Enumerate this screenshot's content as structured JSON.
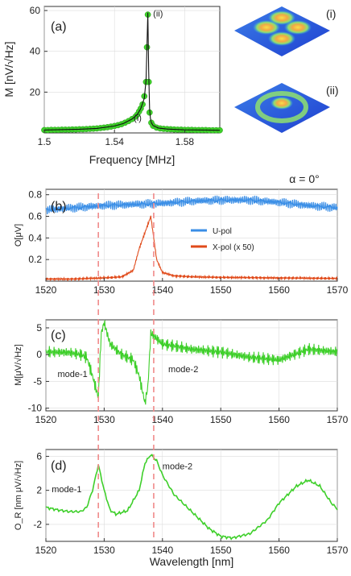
{
  "chart_data": [
    {
      "id": "a",
      "type": "scatter",
      "panel_label": "(a)",
      "xlabel": "Frequency [MHz]",
      "ylabel": "M [nV/√Hz]",
      "xlim": [
        1.5,
        1.6
      ],
      "ylim": [
        0,
        62
      ],
      "xticks": [
        1.5,
        1.54,
        1.58
      ],
      "xtick_labels": [
        "1.5",
        "1.54",
        "1.58"
      ],
      "yticks": [
        20,
        40,
        60
      ],
      "ytick_labels": [
        "20",
        "40",
        "60"
      ],
      "annotations": [
        {
          "text": "(i)",
          "x": 1.551,
          "y": 6
        },
        {
          "text": "(ii)",
          "x": 1.562,
          "y": 57
        }
      ],
      "series": [
        {
          "kind": "points",
          "color": "#3ecf2a",
          "x": [
            1.5,
            1.502,
            1.504,
            1.506,
            1.508,
            1.51,
            1.512,
            1.514,
            1.516,
            1.518,
            1.52,
            1.522,
            1.524,
            1.526,
            1.528,
            1.53,
            1.532,
            1.534,
            1.536,
            1.538,
            1.54,
            1.542,
            1.544,
            1.546,
            1.548,
            1.55,
            1.552,
            1.553,
            1.554,
            1.555,
            1.556,
            1.557,
            1.558,
            1.5585,
            1.559,
            1.5595,
            1.56,
            1.561,
            1.562,
            1.564,
            1.566,
            1.568,
            1.57,
            1.572,
            1.574,
            1.576,
            1.578,
            1.58,
            1.582,
            1.584,
            1.586,
            1.588,
            1.59,
            1.592,
            1.594,
            1.596,
            1.598,
            1.6
          ],
          "y": [
            1.4,
            1.4,
            1.5,
            1.5,
            1.5,
            1.6,
            1.6,
            1.6,
            1.7,
            1.7,
            1.8,
            1.8,
            1.9,
            2,
            2.1,
            2.2,
            2.4,
            2.6,
            2.8,
            3.1,
            3.4,
            3.8,
            4.3,
            5,
            5.8,
            6.8,
            8,
            9,
            10.5,
            12,
            14,
            18,
            25,
            42,
            58,
            25,
            10,
            5,
            3.5,
            2.6,
            2.2,
            2,
            1.9,
            1.8,
            1.7,
            1.6,
            1.6,
            1.5,
            1.5,
            1.5,
            1.4,
            1.4,
            1.4,
            1.4,
            1.3,
            1.3,
            1.3,
            1.3
          ]
        },
        {
          "kind": "fit-line",
          "color": "#111111",
          "x": [
            1.5,
            1.51,
            1.52,
            1.53,
            1.54,
            1.545,
            1.55,
            1.553,
            1.555,
            1.557,
            1.558,
            1.5585,
            1.559,
            1.5595,
            1.56,
            1.5605,
            1.561,
            1.562,
            1.565,
            1.57,
            1.58,
            1.59,
            1.6
          ],
          "y": [
            1.4,
            1.6,
            1.8,
            2.2,
            3.4,
            4.6,
            6.8,
            9,
            12,
            17,
            26,
            42,
            59,
            30,
            12,
            7,
            5,
            3.6,
            2.4,
            1.9,
            1.5,
            1.4,
            1.3
          ]
        }
      ]
    },
    {
      "id": "b",
      "type": "line",
      "panel_label": "(b)",
      "title": "α = 0°",
      "xlabel": "",
      "ylabel": "O[μV]",
      "xlim": [
        1520,
        1570
      ],
      "ylim": [
        0,
        0.85
      ],
      "xticks": [
        1520,
        1530,
        1540,
        1550,
        1560,
        1570
      ],
      "xtick_labels": [
        "1520",
        "1530",
        "1540",
        "1550",
        "1560",
        "1570"
      ],
      "yticks": [
        0.2,
        0.4,
        0.6,
        0.8
      ],
      "ytick_labels": [
        "0.2",
        "0.4",
        "0.6",
        "0.8"
      ],
      "legend_position": "right",
      "series": [
        {
          "name": "U-pol",
          "color": "#3a8ee6",
          "x": [
            1520,
            1525,
            1530,
            1535,
            1540,
            1545,
            1550,
            1555,
            1560,
            1565,
            1570
          ],
          "y": [
            0.66,
            0.68,
            0.7,
            0.71,
            0.72,
            0.74,
            0.75,
            0.75,
            0.73,
            0.7,
            0.68
          ],
          "ripple": 0.045
        },
        {
          "name": "X-pol (x 50)",
          "color": "#e04a1a",
          "x": [
            1520,
            1525,
            1530,
            1533,
            1535,
            1536,
            1537,
            1538,
            1539,
            1540,
            1542,
            1545,
            1550,
            1560,
            1570
          ],
          "y": [
            0.02,
            0.02,
            0.03,
            0.04,
            0.1,
            0.3,
            0.45,
            0.6,
            0.2,
            0.08,
            0.05,
            0.04,
            0.035,
            0.03,
            0.025
          ],
          "ripple": 0.012
        }
      ]
    },
    {
      "id": "c",
      "type": "line",
      "panel_label": "(c)",
      "xlabel": "",
      "ylabel": "M[μV/√Hz]",
      "xlim": [
        1520,
        1570
      ],
      "ylim": [
        -10.5,
        6.5
      ],
      "xticks": [
        1520,
        1530,
        1540,
        1550,
        1560,
        1570
      ],
      "xtick_labels": [
        "1520",
        "1530",
        "1540",
        "1550",
        "1560",
        "1570"
      ],
      "yticks": [
        -10,
        -5,
        0,
        5
      ],
      "ytick_labels": [
        "-10",
        "-5",
        "0",
        "5"
      ],
      "annotations": [
        {
          "text": "mode-1",
          "x": 1522,
          "y": -4.2
        },
        {
          "text": "mode-2",
          "x": 1541,
          "y": -3.3
        }
      ],
      "series": [
        {
          "color": "#3ecf2a",
          "x": [
            1520,
            1524,
            1526,
            1527,
            1528,
            1529,
            1529.5,
            1530,
            1531,
            1533,
            1535,
            1536,
            1537,
            1537.5,
            1538,
            1539,
            1540,
            1545,
            1550,
            1555,
            1560,
            1565,
            1570
          ],
          "y": [
            0.5,
            0.4,
            0,
            -0.5,
            -4,
            -8,
            4,
            6,
            2,
            0,
            -1,
            -4,
            -9,
            -6,
            4,
            3,
            2,
            1,
            0.5,
            -0.5,
            -1,
            1,
            0.5
          ],
          "ripple": 1.2
        }
      ]
    },
    {
      "id": "d",
      "type": "line",
      "panel_label": "(d)",
      "xlabel": "Wavelength [nm]",
      "ylabel": "O_R [nm μV/√Hz]",
      "xlim": [
        1520,
        1570
      ],
      "ylim": [
        -4,
        6.8
      ],
      "xticks": [
        1520,
        1530,
        1540,
        1550,
        1560,
        1570
      ],
      "xtick_labels": [
        "1520",
        "1530",
        "1540",
        "1550",
        "1560",
        "1570"
      ],
      "yticks": [
        -2,
        2,
        6
      ],
      "ytick_labels": [
        "-2",
        "2",
        "6"
      ],
      "annotations": [
        {
          "text": "mode-1",
          "x": 1521,
          "y": 1.8
        },
        {
          "text": "mode-2",
          "x": 1540,
          "y": 4.5
        }
      ],
      "series": [
        {
          "color": "#3ecf2a",
          "x": [
            1520,
            1522,
            1524,
            1526,
            1527,
            1528,
            1529,
            1530,
            1531,
            1532,
            1534,
            1536,
            1537,
            1538,
            1539,
            1540,
            1542,
            1545,
            1548,
            1550,
            1552,
            1555,
            1558,
            1560,
            1563,
            1565,
            1567,
            1569,
            1570
          ],
          "y": [
            0,
            -0.3,
            -0.5,
            -0.5,
            0,
            2,
            5,
            2,
            -0.3,
            -0.8,
            -0.4,
            2,
            5.2,
            6.2,
            5.5,
            3.8,
            1.5,
            -0.5,
            -2.5,
            -3.4,
            -3.6,
            -3.1,
            -1.5,
            0.5,
            2.5,
            3.2,
            2.5,
            0.5,
            -0.2
          ],
          "ripple": 0.18
        }
      ]
    }
  ],
  "insets": [
    {
      "label": "(i)",
      "colors": [
        "#2d5be3",
        "#2fb3e8",
        "#9be870",
        "#f3c64a"
      ]
    },
    {
      "label": "(ii)",
      "colors": [
        "#2d5be3",
        "#2fb3e8",
        "#9be870",
        "#f3c64a"
      ]
    }
  ],
  "guide_lines": {
    "color": "#f08a8a",
    "x": [
      1529,
      1538.5
    ]
  }
}
